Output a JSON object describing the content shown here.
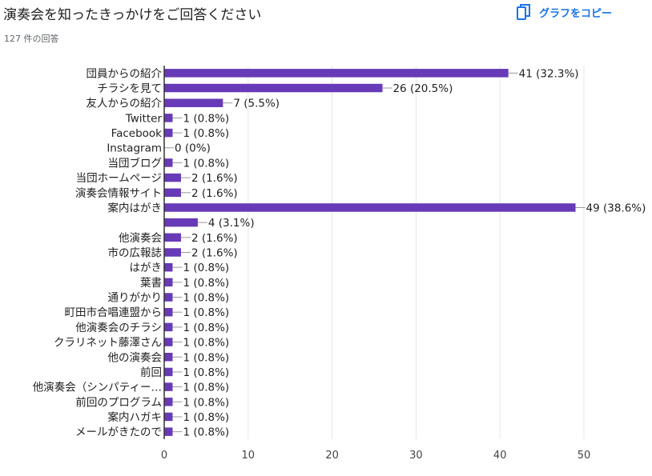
{
  "page": {
    "title": "演奏会を知ったきっかけをご回答ください",
    "response_count": "127 件の回答",
    "copy_label": "グラフをコピー",
    "copy_icon": "copy-icon"
  },
  "colors": {
    "bar": "#673ab7",
    "accent": "#1a73e8",
    "grid": "#e6e6e6",
    "axis": "#333333"
  },
  "chart_data": {
    "type": "bar",
    "orientation": "horizontal",
    "title": "",
    "xlabel": "",
    "ylabel": "",
    "xlim": [
      0,
      50
    ],
    "xticks": [
      0,
      10,
      20,
      30,
      40,
      50
    ],
    "grid": true,
    "categories": [
      "団員からの紹介",
      "チラシを見て",
      "友人からの紹介",
      "Twitter",
      "Facebook",
      "Instagram",
      "当団ブログ",
      "当団ホームページ",
      "演奏会情報サイト",
      "案内はがき",
      "",
      "他演奏会",
      "市の広報誌",
      "はがき",
      "葉書",
      "通りがかり",
      "町田市合唱連盟から",
      "他演奏会のチラシ",
      "クラリネット藤澤さん",
      "他の演奏会",
      "前回",
      "他演奏会（シンパティー…",
      "前回のプログラム",
      "案内ハガキ",
      "メールがきたので"
    ],
    "values": [
      41,
      26,
      7,
      1,
      1,
      0,
      1,
      2,
      2,
      49,
      4,
      2,
      2,
      1,
      1,
      1,
      1,
      1,
      1,
      1,
      1,
      1,
      1,
      1,
      1
    ],
    "value_labels": [
      "41 (32.3%)",
      "26 (20.5%)",
      "7 (5.5%)",
      "1 (0.8%)",
      "1 (0.8%)",
      "0 (0%)",
      "1 (0.8%)",
      "2 (1.6%)",
      "2 (1.6%)",
      "49 (38.6%)",
      "4 (3.1%)",
      "2 (1.6%)",
      "2 (1.6%)",
      "1 (0.8%)",
      "1 (0.8%)",
      "1 (0.8%)",
      "1 (0.8%)",
      "1 (0.8%)",
      "1 (0.8%)",
      "1 (0.8%)",
      "1 (0.8%)",
      "1 (0.8%)",
      "1 (0.8%)",
      "1 (0.8%)",
      "1 (0.8%)"
    ]
  }
}
